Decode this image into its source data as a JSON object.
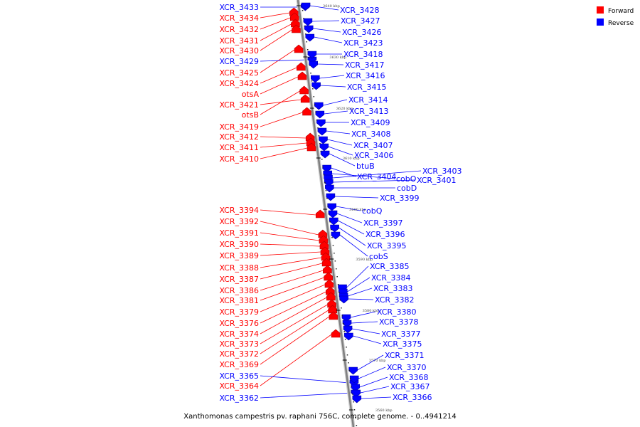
{
  "caption": "Xanthomonas campestris pv. raphani 756C, complete genome. - 0..4941214",
  "legend": {
    "forward": {
      "label": "Forward",
      "color": "#ff0000"
    },
    "reverse": {
      "label": "Reverse",
      "color": "#0000ff"
    }
  },
  "ticks": [
    "3640 kbp",
    "3630 kbp",
    "3620 kbp",
    "3610 kbp",
    "3600 kbp",
    "3590 kbp",
    "3580 kbp",
    "3570 kbp",
    "3560 kbp"
  ],
  "forward_genes": [
    "XCR_3434",
    "XCR_3432",
    "XCR_3431",
    "XCR_3430",
    "XCR_3425",
    "XCR_3424",
    "otsA",
    "XCR_3421",
    "otsB",
    "XCR_3419",
    "XCR_3412",
    "XCR_3411",
    "XCR_3410",
    "XCR_3394",
    "XCR_3392",
    "XCR_3391",
    "XCR_3390",
    "XCR_3389",
    "XCR_3388",
    "XCR_3387",
    "XCR_3386",
    "XCR_3381",
    "XCR_3379",
    "XCR_3376",
    "XCR_3374",
    "XCR_3373",
    "XCR_3372",
    "XCR_3369",
    "XCR_3364"
  ],
  "left_reverse_genes": [
    "XCR_3433",
    "XCR_3429",
    "XCR_3365",
    "XCR_3362"
  ],
  "reverse_genes": [
    "XCR_3428",
    "XCR_3427",
    "XCR_3426",
    "XCR_3423",
    "XCR_3418",
    "XCR_3417",
    "XCR_3416",
    "XCR_3415",
    "XCR_3414",
    "XCR_3413",
    "XCR_3409",
    "XCR_3408",
    "XCR_3407",
    "XCR_3406",
    "btuB",
    "XCR_3404",
    "cobO",
    "XCR_3403",
    "XCR_3401",
    "cobD",
    "XCR_3399",
    "cobQ",
    "XCR_3397",
    "XCR_3396",
    "XCR_3395",
    "cobS",
    "XCR_3385",
    "XCR_3384",
    "XCR_3383",
    "XCR_3382",
    "XCR_3380",
    "XCR_3378",
    "XCR_3377",
    "XCR_3375",
    "XCR_3371",
    "XCR_3370",
    "XCR_3368",
    "XCR_3367",
    "XCR_3366"
  ]
}
